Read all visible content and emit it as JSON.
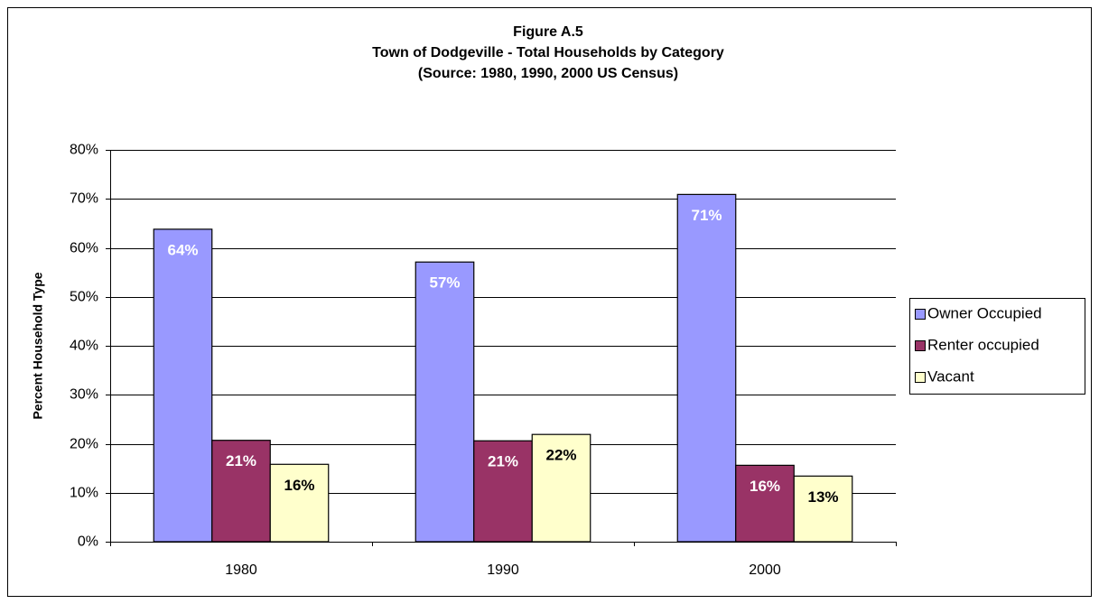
{
  "chart_data": {
    "type": "bar",
    "title": [
      "Figure A.5",
      "Town of Dodgeville -  Total Households by Category",
      "(Source:  1980, 1990, 2000 US Census)"
    ],
    "y_label": "Percent Household Type",
    "categories": [
      "1980",
      "1990",
      "2000"
    ],
    "series": [
      {
        "name": "Owner Occupied",
        "color": "#9999ff",
        "label_color": "#ffffff",
        "values": [
          63.8,
          57.1,
          70.9
        ],
        "value_labels": [
          "64%",
          "57%",
          "71%"
        ]
      },
      {
        "name": "Renter occupied",
        "color": "#993366",
        "label_color": "#ffffff",
        "values": [
          20.7,
          20.6,
          15.6
        ],
        "value_labels": [
          "21%",
          "21%",
          "16%"
        ]
      },
      {
        "name": "Vacant",
        "color": "#ffffcc",
        "label_color": "#000000",
        "values": [
          15.8,
          21.9,
          13.4
        ],
        "value_labels": [
          "16%",
          "22%",
          "13%"
        ]
      }
    ],
    "ylim": [
      0,
      80
    ],
    "yticks": [
      {
        "value": 0,
        "label": "0%"
      },
      {
        "value": 10,
        "label": "10%"
      },
      {
        "value": 20,
        "label": "20%"
      },
      {
        "value": 30,
        "label": "30%"
      },
      {
        "value": 40,
        "label": "40%"
      },
      {
        "value": 50,
        "label": "50%"
      },
      {
        "value": 60,
        "label": "60%"
      },
      {
        "value": 70,
        "label": "70%"
      },
      {
        "value": 80,
        "label": "80%"
      }
    ],
    "grid": true,
    "legend": "right"
  }
}
